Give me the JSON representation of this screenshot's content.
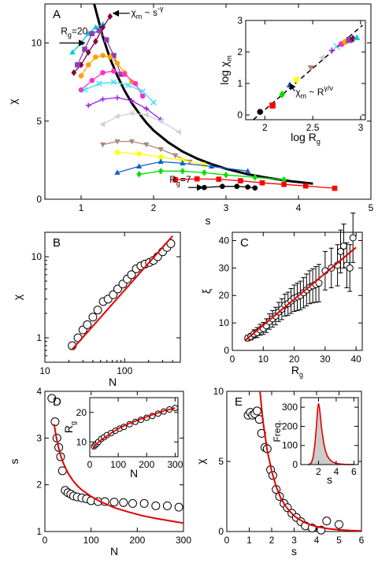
{
  "chart_data": [
    {
      "id": "A",
      "type": "line",
      "panel_label": "A",
      "xlabel": "s",
      "ylabel": "χ",
      "xlim": [
        0.5,
        5
      ],
      "ylim": [
        0,
        12.5
      ],
      "xticks": [
        1,
        2,
        3,
        4,
        5
      ],
      "yticks": [
        0,
        5,
        10
      ],
      "fit": {
        "x": [
          1.18,
          1.3,
          1.4,
          1.5,
          1.6,
          1.7,
          1.8,
          1.9,
          2.0,
          2.2,
          2.4,
          2.6,
          2.8,
          3.0,
          3.3,
          3.6,
          3.9,
          4.2
        ],
        "y": [
          12.5,
          10.4,
          9.0,
          7.9,
          6.95,
          6.15,
          5.5,
          4.9,
          4.4,
          3.65,
          3.05,
          2.6,
          2.25,
          1.95,
          1.6,
          1.35,
          1.15,
          1.0
        ]
      },
      "series": [
        {
          "color": "#00c8d8",
          "marker": "tri",
          "x": [
            0.88,
            1.0,
            1.1,
            1.2,
            1.3
          ],
          "y": [
            9.4,
            10.0,
            10.6,
            11.0,
            11.2
          ]
        },
        {
          "color": "#800040",
          "marker": "diamond",
          "x": [
            0.9,
            1.0,
            1.1,
            1.2,
            1.3,
            1.4
          ],
          "y": [
            8.1,
            8.6,
            9.4,
            10.1,
            11.0,
            11.7
          ]
        },
        {
          "color": "#8a40b0",
          "marker": "square",
          "x": [
            0.95,
            1.05,
            1.15,
            1.25,
            1.35,
            1.45,
            1.55
          ],
          "y": [
            8.6,
            9.6,
            10.6,
            10.8,
            10.2,
            9.2,
            8.0
          ]
        },
        {
          "color": "#ffa000",
          "marker": "circle",
          "x": [
            1.0,
            1.1,
            1.2,
            1.3,
            1.4,
            1.5,
            1.6,
            1.7
          ],
          "y": [
            7.9,
            8.6,
            9.1,
            9.2,
            9.1,
            8.7,
            8.1,
            7.5
          ]
        },
        {
          "color": "#ff30c8",
          "marker": "circle",
          "x": [
            1.0,
            1.15,
            1.3,
            1.45,
            1.6,
            1.75,
            1.85
          ],
          "y": [
            7.0,
            7.6,
            8.1,
            8.2,
            8.0,
            7.4,
            6.6
          ]
        },
        {
          "color": "#40e0ff",
          "marker": "cross",
          "x": [
            1.05,
            1.25,
            1.45,
            1.65,
            1.85,
            2.0
          ],
          "y": [
            7.0,
            7.4,
            7.5,
            7.3,
            6.9,
            6.2
          ]
        },
        {
          "color": "#a020f0",
          "marker": "plus",
          "x": [
            1.1,
            1.3,
            1.5,
            1.7,
            1.9,
            2.1
          ],
          "y": [
            6.0,
            6.4,
            6.5,
            6.3,
            5.8,
            5.1
          ]
        },
        {
          "color": "#d0d0d0",
          "marker": "tri-left",
          "x": [
            1.3,
            1.5,
            1.7,
            1.9,
            2.1,
            2.35
          ],
          "y": [
            4.8,
            5.3,
            5.5,
            5.4,
            5.0,
            4.3
          ]
        },
        {
          "color": "#b08878",
          "marker": "tri-down",
          "x": [
            1.3,
            1.5,
            1.7,
            1.9,
            2.1,
            2.3,
            2.5
          ],
          "y": [
            3.5,
            3.7,
            3.7,
            3.5,
            3.2,
            2.8,
            2.4
          ]
        },
        {
          "color": "#ffff00",
          "marker": "circle",
          "x": [
            1.5,
            1.8,
            2.1,
            2.4,
            2.7
          ],
          "y": [
            3.0,
            2.9,
            2.7,
            2.5,
            2.2
          ]
        },
        {
          "color": "#1060c8",
          "marker": "tri",
          "x": [
            1.5,
            1.8,
            2.1,
            2.4,
            2.8,
            3.3
          ],
          "y": [
            1.7,
            2.1,
            2.4,
            2.3,
            2.1,
            1.8
          ]
        },
        {
          "color": "#00e000",
          "marker": "diamond",
          "x": [
            1.8,
            2.1,
            2.4,
            2.7,
            3.0,
            3.4,
            3.8
          ],
          "y": [
            1.6,
            1.8,
            1.8,
            1.7,
            1.55,
            1.4,
            1.25
          ]
        },
        {
          "color": "#ff0000",
          "marker": "square",
          "x": [
            2.3,
            2.6,
            2.9,
            3.2,
            3.5,
            3.8,
            4.1,
            4.5
          ],
          "y": [
            1.25,
            1.3,
            1.28,
            1.18,
            1.05,
            0.95,
            0.85,
            0.7
          ]
        },
        {
          "color": "#000000",
          "marker": "circle",
          "x": [
            2.7,
            2.95,
            3.15,
            3.3,
            3.4
          ],
          "y": [
            0.75,
            0.82,
            0.82,
            0.78,
            0.72
          ]
        }
      ],
      "annotations": [
        {
          "text": "R",
          "sub": "g",
          "tail": "=20",
          "x": 0.72,
          "y": 10.55,
          "arrow": [
            0.7,
            10.0,
            1.05,
            10.0
          ]
        },
        {
          "text": "R",
          "sub": "g",
          "tail": "=7",
          "x": 2.22,
          "y": 1.05,
          "arrow": [
            2.48,
            0.75,
            2.68,
            0.75
          ]
        },
        {
          "text": "χ",
          "sub": "m",
          "tail": " ~ s",
          "sup": "-γ",
          "x": 1.69,
          "y": 11.75,
          "arrow": [
            1.67,
            11.9,
            1.44,
            11.9
          ]
        }
      ],
      "inset": {
        "xlabel": "log R",
        "xlabel_sub": "g",
        "ylabel": "log χ",
        "ylabel_sub": "m",
        "xlim": [
          1.8,
          3.05
        ],
        "ylim": [
          -0.15,
          3.0
        ],
        "xticks": [
          2,
          2.5,
          3
        ],
        "yticks": [
          0,
          1,
          2,
          3
        ],
        "line": {
          "x": [
            1.88,
            3.02
          ],
          "y": [
            -0.15,
            2.85
          ]
        },
        "annotation": {
          "text": "χ",
          "sub": "m",
          "tail": " ~ R",
          "sup": "γ/ν",
          "x": 2.32,
          "y": 0.62,
          "arrow": [
            2.31,
            0.76,
            2.26,
            1.0
          ]
        },
        "points": [
          {
            "x": 1.95,
            "y": 0.1,
            "color": "#000000",
            "marker": "circle"
          },
          {
            "x": 2.08,
            "y": 0.3,
            "color": "#ff0000",
            "marker": "square"
          },
          {
            "x": 2.18,
            "y": 0.65,
            "color": "#00e000",
            "marker": "diamond"
          },
          {
            "x": 2.26,
            "y": 0.95,
            "color": "#1060c8",
            "marker": "tri"
          },
          {
            "x": 2.33,
            "y": 1.12,
            "color": "#ffff00",
            "marker": "circle"
          },
          {
            "x": 2.48,
            "y": 1.5,
            "color": "#b08878",
            "marker": "tri-down"
          },
          {
            "x": 2.6,
            "y": 1.82,
            "color": "#d0d0d0",
            "marker": "tri-left"
          },
          {
            "x": 2.7,
            "y": 2.05,
            "color": "#a020f0",
            "marker": "plus"
          },
          {
            "x": 2.75,
            "y": 2.18,
            "color": "#40e0ff",
            "marker": "cross"
          },
          {
            "x": 2.8,
            "y": 2.25,
            "color": "#ff30c8",
            "marker": "circle"
          },
          {
            "x": 2.84,
            "y": 2.32,
            "color": "#ffa000",
            "marker": "circle"
          },
          {
            "x": 2.88,
            "y": 2.38,
            "color": "#8a40b0",
            "marker": "square"
          },
          {
            "x": 2.92,
            "y": 2.42,
            "color": "#800040",
            "marker": "diamond"
          },
          {
            "x": 2.96,
            "y": 2.45,
            "color": "#00c8d8",
            "marker": "tri"
          }
        ]
      }
    },
    {
      "id": "B",
      "type": "scatter",
      "panel_label": "B",
      "xlabel": "N",
      "ylabel": "χ",
      "log": true,
      "xlim": [
        10,
        500
      ],
      "ylim": [
        0.5,
        20
      ],
      "xticks": [
        10,
        100
      ],
      "yticks": [
        1,
        10
      ],
      "fit": {
        "x": [
          22,
          400
        ],
        "y": [
          0.72,
          18.0
        ]
      },
      "points": {
        "x": [
          22,
          26,
          30,
          34,
          40,
          46,
          54,
          62,
          72,
          82,
          95,
          108,
          122,
          140,
          160,
          180,
          205,
          230,
          260,
          300,
          340,
          380
        ],
        "y": [
          0.8,
          1.0,
          1.25,
          1.45,
          1.8,
          2.2,
          2.8,
          3.0,
          3.4,
          4.0,
          4.6,
          5.3,
          6.0,
          7.1,
          7.7,
          8.1,
          8.5,
          9.0,
          10.0,
          11.5,
          13.0,
          14.5
        ],
        "yerr": 0.08
      }
    },
    {
      "id": "C",
      "type": "scatter",
      "panel_label": "C",
      "xlabel": "R",
      "xlabel_sub": "g",
      "ylabel": "ξ",
      "xlim": [
        0,
        42
      ],
      "ylim": [
        0,
        43
      ],
      "xticks": [
        0,
        10,
        20,
        30,
        40
      ],
      "yticks": [
        0,
        10,
        20,
        30,
        40
      ],
      "fit": {
        "x": [
          4,
          40
        ],
        "y": [
          3.5,
          37.5
        ]
      },
      "points": {
        "x": [
          5,
          6,
          7,
          8,
          9,
          10,
          11,
          12,
          13,
          14,
          15,
          16,
          17,
          18,
          19,
          20,
          21,
          22,
          23,
          24,
          25,
          26,
          27,
          28,
          30,
          32,
          34,
          35,
          36,
          37,
          38,
          39
        ],
        "y": [
          4.5,
          5,
          6,
          6.5,
          7.5,
          8,
          9,
          10.5,
          11.5,
          12.5,
          14,
          15,
          16.5,
          17,
          18,
          19,
          19.5,
          20,
          21,
          22,
          23,
          23.5,
          24,
          24.5,
          29,
          30,
          31,
          36,
          38,
          31,
          30,
          41
        ],
        "yerr": [
          1,
          1.2,
          1.5,
          1.8,
          2,
          2.2,
          2.5,
          2.8,
          3,
          3.2,
          3.5,
          3.8,
          4,
          4.2,
          4.5,
          4.8,
          5,
          5.2,
          5.5,
          5.8,
          6,
          6.2,
          6.5,
          6.8,
          7,
          7.2,
          7.5,
          7.8,
          8,
          8.2,
          8.5,
          9
        ]
      }
    },
    {
      "id": "D",
      "type": "scatter",
      "panel_label": "D",
      "xlabel": "N",
      "ylabel": "s",
      "xlim": [
        0,
        300
      ],
      "ylim": [
        1,
        4
      ],
      "xticks": [
        0,
        100,
        200,
        300
      ],
      "yticks": [
        1,
        2,
        3,
        4
      ],
      "fit": {
        "x": [
          20,
          25,
          30,
          35,
          40,
          50,
          60,
          70,
          80,
          100,
          120,
          150,
          180,
          210,
          240,
          270,
          300
        ],
        "y": [
          3.3,
          3.0,
          2.78,
          2.6,
          2.46,
          2.25,
          2.1,
          1.98,
          1.89,
          1.75,
          1.64,
          1.51,
          1.42,
          1.34,
          1.28,
          1.23,
          1.18
        ]
      },
      "points": {
        "x": [
          15,
          22,
          26,
          30,
          34,
          38,
          44,
          50,
          56,
          62,
          70,
          80,
          90,
          100,
          115,
          130,
          150,
          170,
          190,
          215,
          240,
          265,
          290
        ],
        "y": [
          3.85,
          3.35,
          3.0,
          2.8,
          2.6,
          2.3,
          1.88,
          1.83,
          1.8,
          1.76,
          1.74,
          1.72,
          1.7,
          1.66,
          1.64,
          1.64,
          1.63,
          1.62,
          1.6,
          1.6,
          1.55,
          1.55,
          1.52
        ],
        "xerr": 3,
        "yerr": 0.05
      },
      "inset": {
        "xlabel": "N",
        "ylabel": "R",
        "ylabel_sub": "g",
        "xlim": [
          0,
          310
        ],
        "ylim": [
          5,
          25
        ],
        "xticks": [
          0,
          100,
          200,
          300
        ],
        "yticks": [
          10,
          20
        ],
        "fit": {
          "x": [
            10,
            20,
            40,
            60,
            80,
            100,
            140,
            180,
            220,
            260,
            300
          ],
          "y": [
            7.5,
            9.0,
            10.7,
            12.0,
            13.3,
            14.5,
            16.3,
            17.8,
            19.2,
            20.5,
            21.5
          ]
        },
        "points": {
          "x": [
            15,
            20,
            25,
            30,
            40,
            50,
            60,
            75,
            90,
            105,
            120,
            140,
            160,
            180,
            200,
            220,
            240,
            260,
            280,
            300
          ],
          "y": [
            8.5,
            9.0,
            9.5,
            10.0,
            11.0,
            11.6,
            12.3,
            13.0,
            13.8,
            14.5,
            15.1,
            16.0,
            16.8,
            17.5,
            18.2,
            18.8,
            19.6,
            20.3,
            21.0,
            21.5
          ]
        }
      }
    },
    {
      "id": "E",
      "type": "scatter",
      "panel_label": "E",
      "xlabel": "s",
      "ylabel": "χ",
      "xlim": [
        0,
        6
      ],
      "ylim": [
        0,
        10
      ],
      "xticks": [
        0,
        1,
        2,
        3,
        4,
        5,
        6
      ],
      "yticks": [
        0,
        5,
        10
      ],
      "fit": {
        "x": [
          1.48,
          1.6,
          1.8,
          2.0,
          2.2,
          2.4,
          2.6,
          2.8,
          3.0,
          3.2,
          3.5,
          3.8,
          4.1,
          4.5,
          5.0,
          5.5,
          6.0
        ],
        "y": [
          10.0,
          8.0,
          5.8,
          4.3,
          3.2,
          2.4,
          1.85,
          1.45,
          1.12,
          0.88,
          0.62,
          0.44,
          0.32,
          0.2,
          0.12,
          0.07,
          0.04
        ]
      },
      "points": {
        "x": [
          0.95,
          1.05,
          1.15,
          1.25,
          1.35,
          1.45,
          1.55,
          1.7,
          1.8,
          1.95,
          2.05,
          2.2,
          2.35,
          2.55,
          2.7,
          2.9,
          3.1,
          3.3,
          3.5,
          3.8,
          4.2,
          4.45,
          5.0
        ],
        "y": [
          8.3,
          8.5,
          8.3,
          8.4,
          8.6,
          8.0,
          7.0,
          6.0,
          5.9,
          4.4,
          4.0,
          3.0,
          2.5,
          2.0,
          1.7,
          1.3,
          1.0,
          0.7,
          0.4,
          0.25,
          0.1,
          0.75,
          0.5
        ],
        "xerr": 0.08,
        "yerr": 0.2
      },
      "inset": {
        "ylabel": "Freq.",
        "xlabel": "s",
        "xlim": [
          0,
          6.5
        ],
        "ylim": [
          0,
          350
        ],
        "xticks": [
          2,
          4,
          6
        ],
        "yticks": [
          0,
          100,
          200,
          300
        ],
        "hist": {
          "x": [
            0.8,
            1.0,
            1.2,
            1.4,
            1.6,
            1.8,
            1.9,
            2.0,
            2.1,
            2.2,
            2.3,
            2.4,
            2.6,
            2.8,
            3.0,
            3.2,
            3.4,
            3.6,
            3.8,
            4.0,
            4.5,
            5.0,
            6.0
          ],
          "y": [
            0,
            2,
            10,
            40,
            110,
            220,
            290,
            320,
            300,
            260,
            210,
            170,
            110,
            70,
            45,
            30,
            20,
            14,
            10,
            6,
            3,
            1,
            0
          ]
        }
      }
    }
  ]
}
